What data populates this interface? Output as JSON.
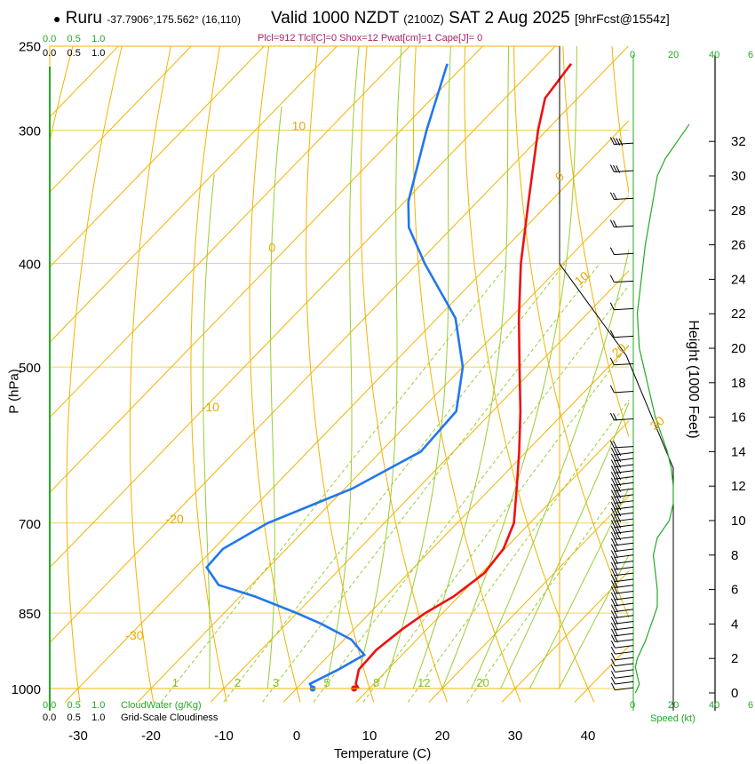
{
  "header": {
    "station_bullet": "●",
    "station": "Ruru",
    "location": "-37.7906°,175.562° (16,110)",
    "valid": "Valid 1000 NZDT",
    "utc": "(2100Z)",
    "date": "SAT 2 Aug 2025",
    "forecast": "[9hrFcst@1554z]",
    "params": "Plcl=912 Tlcl[C]=0 Shox=12 Pwat[cm]=1 Cape[J]= 0"
  },
  "legend": {
    "cloudwater_label": "CloudWater (g/Kg)",
    "cloudiness_label": "Grid-Scale Cloudiness",
    "top_green_ticks": [
      "0.0",
      "0.5",
      "1.0"
    ],
    "top_black_ticks": [
      "0.0",
      "0.5",
      "1.0"
    ],
    "bottom_green_ticks": [
      "0.0",
      "0.5",
      "1.0"
    ],
    "bottom_black_ticks": [
      "0.0",
      "0.5",
      "1.0"
    ]
  },
  "wind_panel": {
    "speed_label": "Speed (kt)",
    "top_ticks": [
      "0",
      "20",
      "40",
      "6"
    ],
    "bottom_ticks": [
      "0",
      "20",
      "40",
      "6"
    ],
    "colors": {
      "profile": "#22aa22",
      "barbs": "#000000"
    }
  },
  "colors": {
    "temperature": "#ee1111",
    "dewpoint": "#2277ee",
    "isotherm": "#f0b400",
    "dry_adiabat": "#f0b400",
    "moist_adiabat": "#9acd32",
    "mixing_ratio": "#9acd32",
    "isobar": "#f0d060"
  },
  "chart_data": {
    "type": "line",
    "title": "Skew-T log-P sounding",
    "xlabel": "Temperature (C)",
    "ylabel": "P (hPa)",
    "y2label": "Height (1000 Feet)",
    "x_ticks": [
      "-30",
      "-20",
      "-10",
      "0",
      "10",
      "20",
      "30",
      "40"
    ],
    "pressure_ticks": [
      250,
      300,
      400,
      500,
      700,
      850,
      1000
    ],
    "height_ticks": [
      "0",
      "2",
      "4",
      "6",
      "8",
      "10",
      "12",
      "14",
      "16",
      "18",
      "20",
      "22",
      "24",
      "26",
      "28",
      "30",
      "32"
    ],
    "isotherm_labels": [
      "10",
      "0",
      "-10",
      "-20",
      "-30",
      "0",
      "10",
      "20",
      "30"
    ],
    "mixing_ratio_labels": [
      "1",
      "2",
      "3",
      "5",
      "8",
      "12",
      "20"
    ],
    "xlim": [
      -35,
      46
    ],
    "ylim_hpa": [
      1030,
      250
    ],
    "series": [
      {
        "name": "Temperature",
        "points": [
          [
            1000,
            8.5
          ],
          [
            990,
            7.5
          ],
          [
            960,
            6.0
          ],
          [
            920,
            5.8
          ],
          [
            880,
            6.6
          ],
          [
            850,
            7.6
          ],
          [
            820,
            9.3
          ],
          [
            780,
            10.4
          ],
          [
            740,
            9.8
          ],
          [
            700,
            7.8
          ],
          [
            650,
            3.6
          ],
          [
            600,
            -1.0
          ],
          [
            550,
            -6.2
          ],
          [
            500,
            -12.2
          ],
          [
            450,
            -18.8
          ],
          [
            400,
            -25.8
          ],
          [
            350,
            -33.0
          ],
          [
            300,
            -41.2
          ],
          [
            280,
            -44.5
          ],
          [
            260,
            -45.5
          ]
        ]
      },
      {
        "name": "Dewpoint",
        "points": [
          [
            1000,
            2.2
          ],
          [
            990,
            1.2
          ],
          [
            960,
            3.2
          ],
          [
            930,
            4.8
          ],
          [
            900,
            1.0
          ],
          [
            870,
            -5.2
          ],
          [
            850,
            -10.0
          ],
          [
            820,
            -18.0
          ],
          [
            800,
            -24.5
          ],
          [
            770,
            -28.5
          ],
          [
            740,
            -28.7
          ],
          [
            700,
            -26.0
          ],
          [
            650,
            -19.0
          ],
          [
            600,
            -14.5
          ],
          [
            550,
            -15.0
          ],
          [
            500,
            -20.0
          ],
          [
            450,
            -27.5
          ],
          [
            400,
            -39.0
          ],
          [
            370,
            -46.0
          ],
          [
            350,
            -49.5
          ],
          [
            300,
            -56.5
          ],
          [
            260,
            -62.5
          ]
        ]
      }
    ],
    "wind_speed_profile": {
      "height_kft": [
        0,
        0.5,
        1,
        1.5,
        2,
        3,
        4,
        5,
        6,
        7,
        8,
        9,
        10,
        11,
        12,
        13,
        14,
        16,
        18,
        20,
        22,
        24,
        26,
        28,
        30,
        31,
        32,
        33
      ],
      "speed_kt": [
        1,
        3,
        2,
        1,
        2,
        6,
        9,
        12,
        12,
        11,
        10,
        12,
        18,
        20,
        20,
        19,
        17,
        11,
        7,
        3,
        2,
        4,
        6,
        9,
        12,
        16,
        22,
        28
      ]
    }
  }
}
